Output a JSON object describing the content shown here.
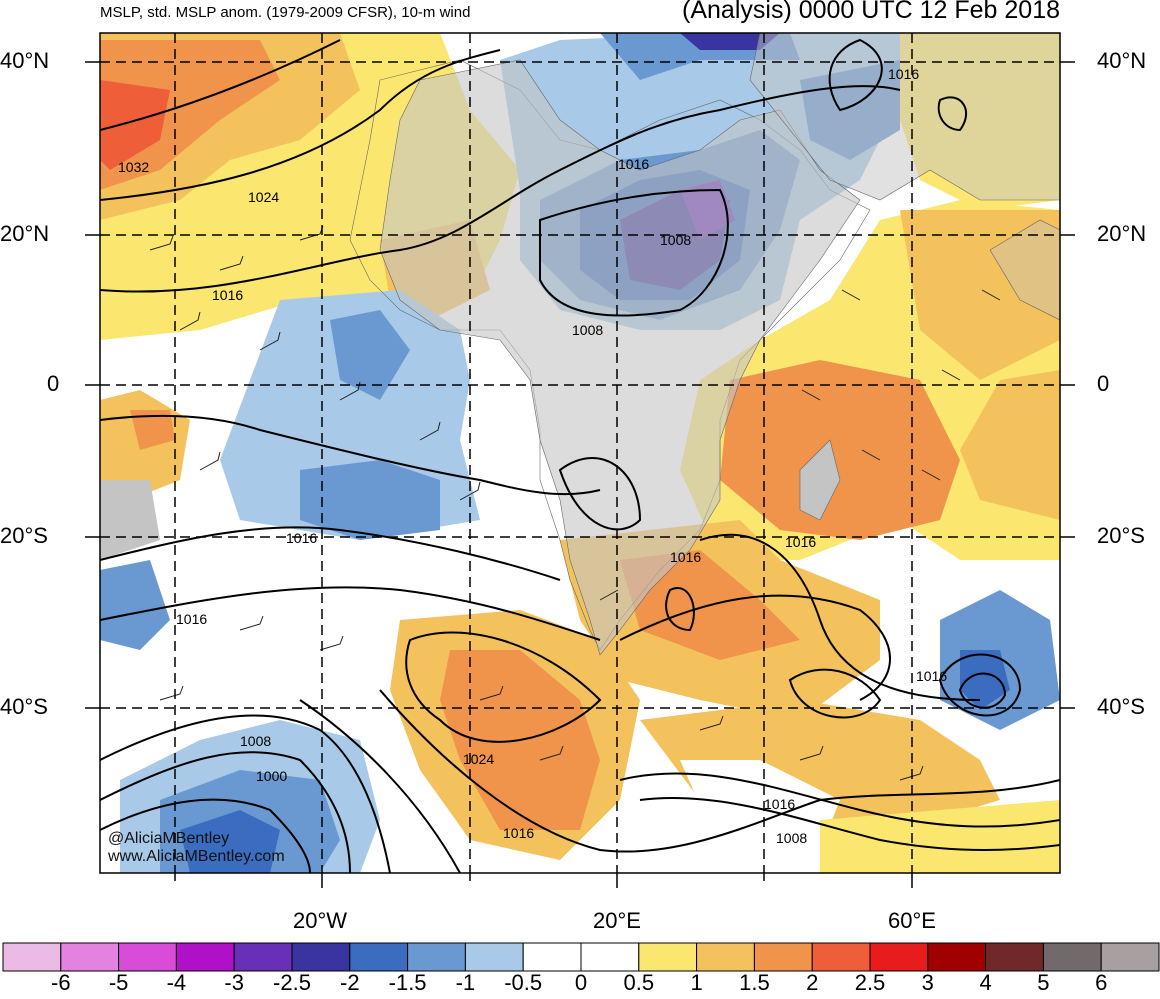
{
  "title": {
    "left": "MSLP, std. MSLP anom. (1979-2009 CFSR), 10-m wind",
    "right": "(Analysis) 0000 UTC 12 Feb 2018"
  },
  "lat_labels": [
    "40°N",
    "20°N",
    "0",
    "20°S",
    "40°S"
  ],
  "lon_labels": [
    "20°W",
    "20°E",
    "60°E"
  ],
  "credits": [
    "@AliciaMBentley",
    "www.AliciaMBentley.com"
  ],
  "contour_labels": [
    "1032",
    "1024",
    "1016",
    "1016",
    "1008",
    "1008",
    "1016",
    "1016",
    "1016",
    "1016",
    "1016",
    "1016",
    "1024",
    "1016",
    "1008",
    "1000",
    "1016",
    "1008"
  ],
  "colorbar": {
    "labels": [
      "-6",
      "-5",
      "-4",
      "-3",
      "-2.5",
      "-2",
      "-1.5",
      "-1",
      "-0.5",
      "0",
      "0.5",
      "1",
      "1.5",
      "2",
      "2.5",
      "3",
      "4",
      "5",
      "6"
    ],
    "colors": [
      "#ebbbe6",
      "#e482e0",
      "#d94bd9",
      "#b010c8",
      "#6830b8",
      "#3a34a0",
      "#3a6cc0",
      "#6a98d0",
      "#a8cae8",
      "#ffffff",
      "#ffffff",
      "#fbe670",
      "#f4c25c",
      "#f0944c",
      "#ee5e38",
      "#e81c1c",
      "#a00000",
      "#702828",
      "#726a6a",
      "#a8a0a0"
    ]
  },
  "legend_colors": {
    "land": "#c4c4c4",
    "contour": "#000000",
    "grid": "#000000"
  }
}
